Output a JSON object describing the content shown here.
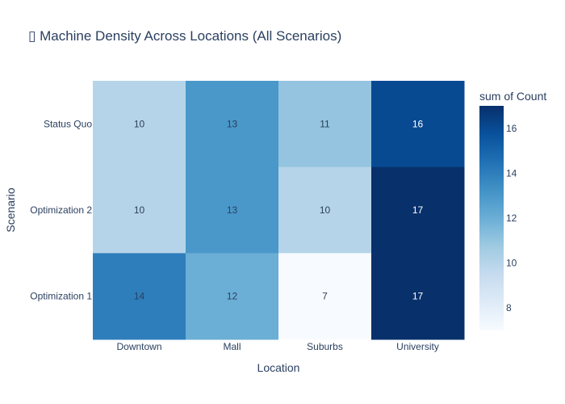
{
  "chart_data": {
    "type": "heatmap",
    "title": "▯ Machine Density Across Locations (All Scenarios)",
    "xlabel": "Location",
    "ylabel": "Scenario",
    "x_categories": [
      "Downtown",
      "Mall",
      "Suburbs",
      "University"
    ],
    "y_categories": [
      "Status Quo",
      "Optimization 2",
      "Optimization 1"
    ],
    "z": [
      [
        10,
        13,
        11,
        16
      ],
      [
        10,
        13,
        10,
        17
      ],
      [
        14,
        12,
        7,
        17
      ]
    ],
    "colorbar": {
      "title": "sum of Count",
      "range": [
        7,
        17
      ],
      "ticks": [
        8,
        10,
        12,
        14,
        16
      ]
    },
    "colorscale": "Blues",
    "colors": {
      "low": "#f7fbff",
      "high": "#08306b",
      "text": "#2a3f5f"
    }
  }
}
